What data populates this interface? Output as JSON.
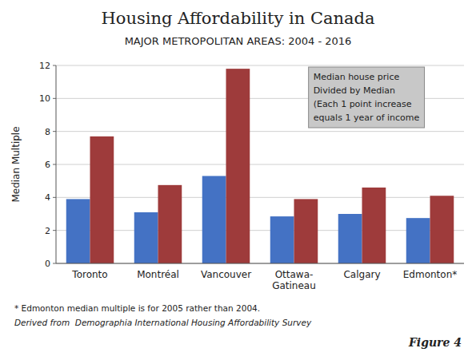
{
  "chart_data": {
    "type": "bar",
    "title": "Housing Affordability in Canada",
    "subtitle": "MAJOR METROPOLITAN AREAS: 2004 - 2016",
    "categories": [
      "Toronto",
      "Montréal",
      "Vancouver",
      "Ottawa-\nGatineau",
      "Calgary",
      "Edmonton*"
    ],
    "series": [
      {
        "color": "#4472C4",
        "values": [
          3.9,
          3.1,
          5.3,
          2.85,
          3.0,
          2.75
        ]
      },
      {
        "color": "#9E3B3B",
        "values": [
          7.7,
          4.75,
          11.8,
          3.9,
          4.6,
          4.1
        ]
      }
    ],
    "ylabel": "Median Multiple",
    "ylim": [
      0,
      12
    ],
    "yticks": [
      0,
      2,
      4,
      6,
      8,
      10,
      12
    ],
    "grid": true,
    "annotation": "Median house price\nDivided by Median\n(Each 1 point increase\nequals 1 year of income",
    "footnotes": [
      "* Edmonton median multiple is for 2005 rather than 2004.",
      "Derived from  Demographia International Housing Affordability Survey"
    ],
    "figure_label": "Figure 4"
  }
}
